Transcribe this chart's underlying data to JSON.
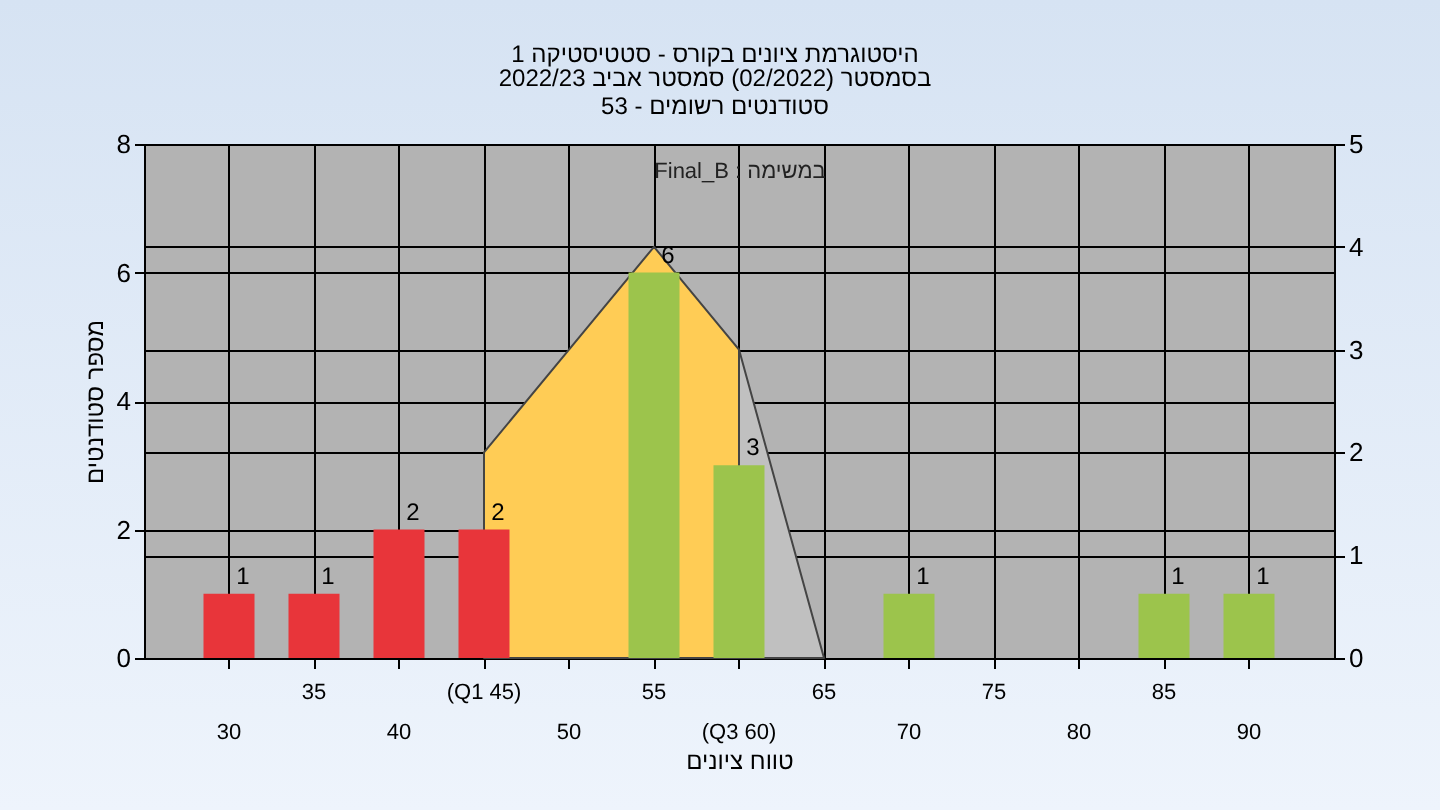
{
  "chart_data": {
    "type": "bar",
    "title": "היסטוגרמת ציונים בקורס - סטטיסטיקה 1",
    "subtitle": "בסמסטר  (02/2022)  סמסטר אביב 2022/23\nסטודנטים רשומים - 53",
    "xlabel": "טווח ציונים",
    "ylabel": "מספר סטודנטים",
    "categories": [
      "30",
      "35",
      "40",
      "(Q1 45)",
      "50",
      "55",
      "(Q3 60)",
      "65",
      "70",
      "75",
      "80",
      "85",
      "90"
    ],
    "series": [
      {
        "type": "area",
        "axis": "y2",
        "color": "#c0c0c0",
        "values": [
          null,
          null,
          null,
          null,
          null,
          null,
          3,
          0,
          null,
          null,
          null,
          null,
          null
        ]
      },
      {
        "type": "area",
        "axis": "y2",
        "color": "#ffcc55",
        "values": [
          null,
          null,
          null,
          2,
          3,
          4,
          3,
          null,
          null,
          null,
          null,
          null,
          null
        ]
      },
      {
        "colors": [
          "#e8353a",
          "#e8353a",
          "#e8353a",
          "#e8353a",
          "#e8353a",
          "#9cc44c",
          "#9cc44c",
          "#9cc44c",
          "#9cc44c",
          "#9cc44c",
          "#9cc44c",
          "#9cc44c",
          "#9cc44c"
        ],
        "values": [
          1,
          1,
          2,
          2,
          0,
          6,
          3,
          0,
          1,
          0,
          0,
          1,
          1
        ],
        "value_labels": [
          "1",
          "1",
          "2",
          "2",
          null,
          "6",
          "3",
          null,
          "1",
          null,
          null,
          "1",
          "1"
        ]
      }
    ],
    "ylim": [
      0,
      8
    ],
    "yticks": [
      0,
      2,
      4,
      6,
      8
    ],
    "y2lim": [
      0,
      5
    ],
    "y2ticks": [
      0,
      1,
      2,
      3,
      4,
      5
    ],
    "grid": true,
    "annotations": [
      "Final_B : במשימה"
    ]
  }
}
